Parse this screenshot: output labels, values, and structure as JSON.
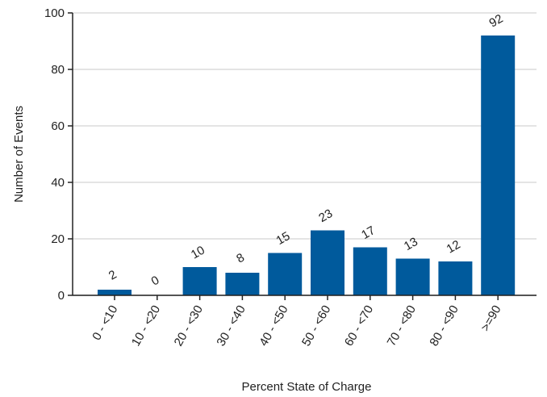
{
  "chart_data": {
    "type": "bar",
    "x_label": "Percent State of Charge",
    "y_label": "Number of Events",
    "categories": [
      "0 - <10",
      "10 - <20",
      "20 - <30",
      "30 - <40",
      "40 - <50",
      "50 - <60",
      "60 - <70",
      "70 - <80",
      "80 - <90",
      ">=90"
    ],
    "values": [
      2,
      0,
      10,
      8,
      15,
      23,
      17,
      13,
      12,
      92
    ],
    "color": "#005a9c",
    "ylim": [
      0,
      100
    ],
    "yticks": [
      0,
      20,
      40,
      60,
      80,
      100
    ],
    "grid": true
  }
}
